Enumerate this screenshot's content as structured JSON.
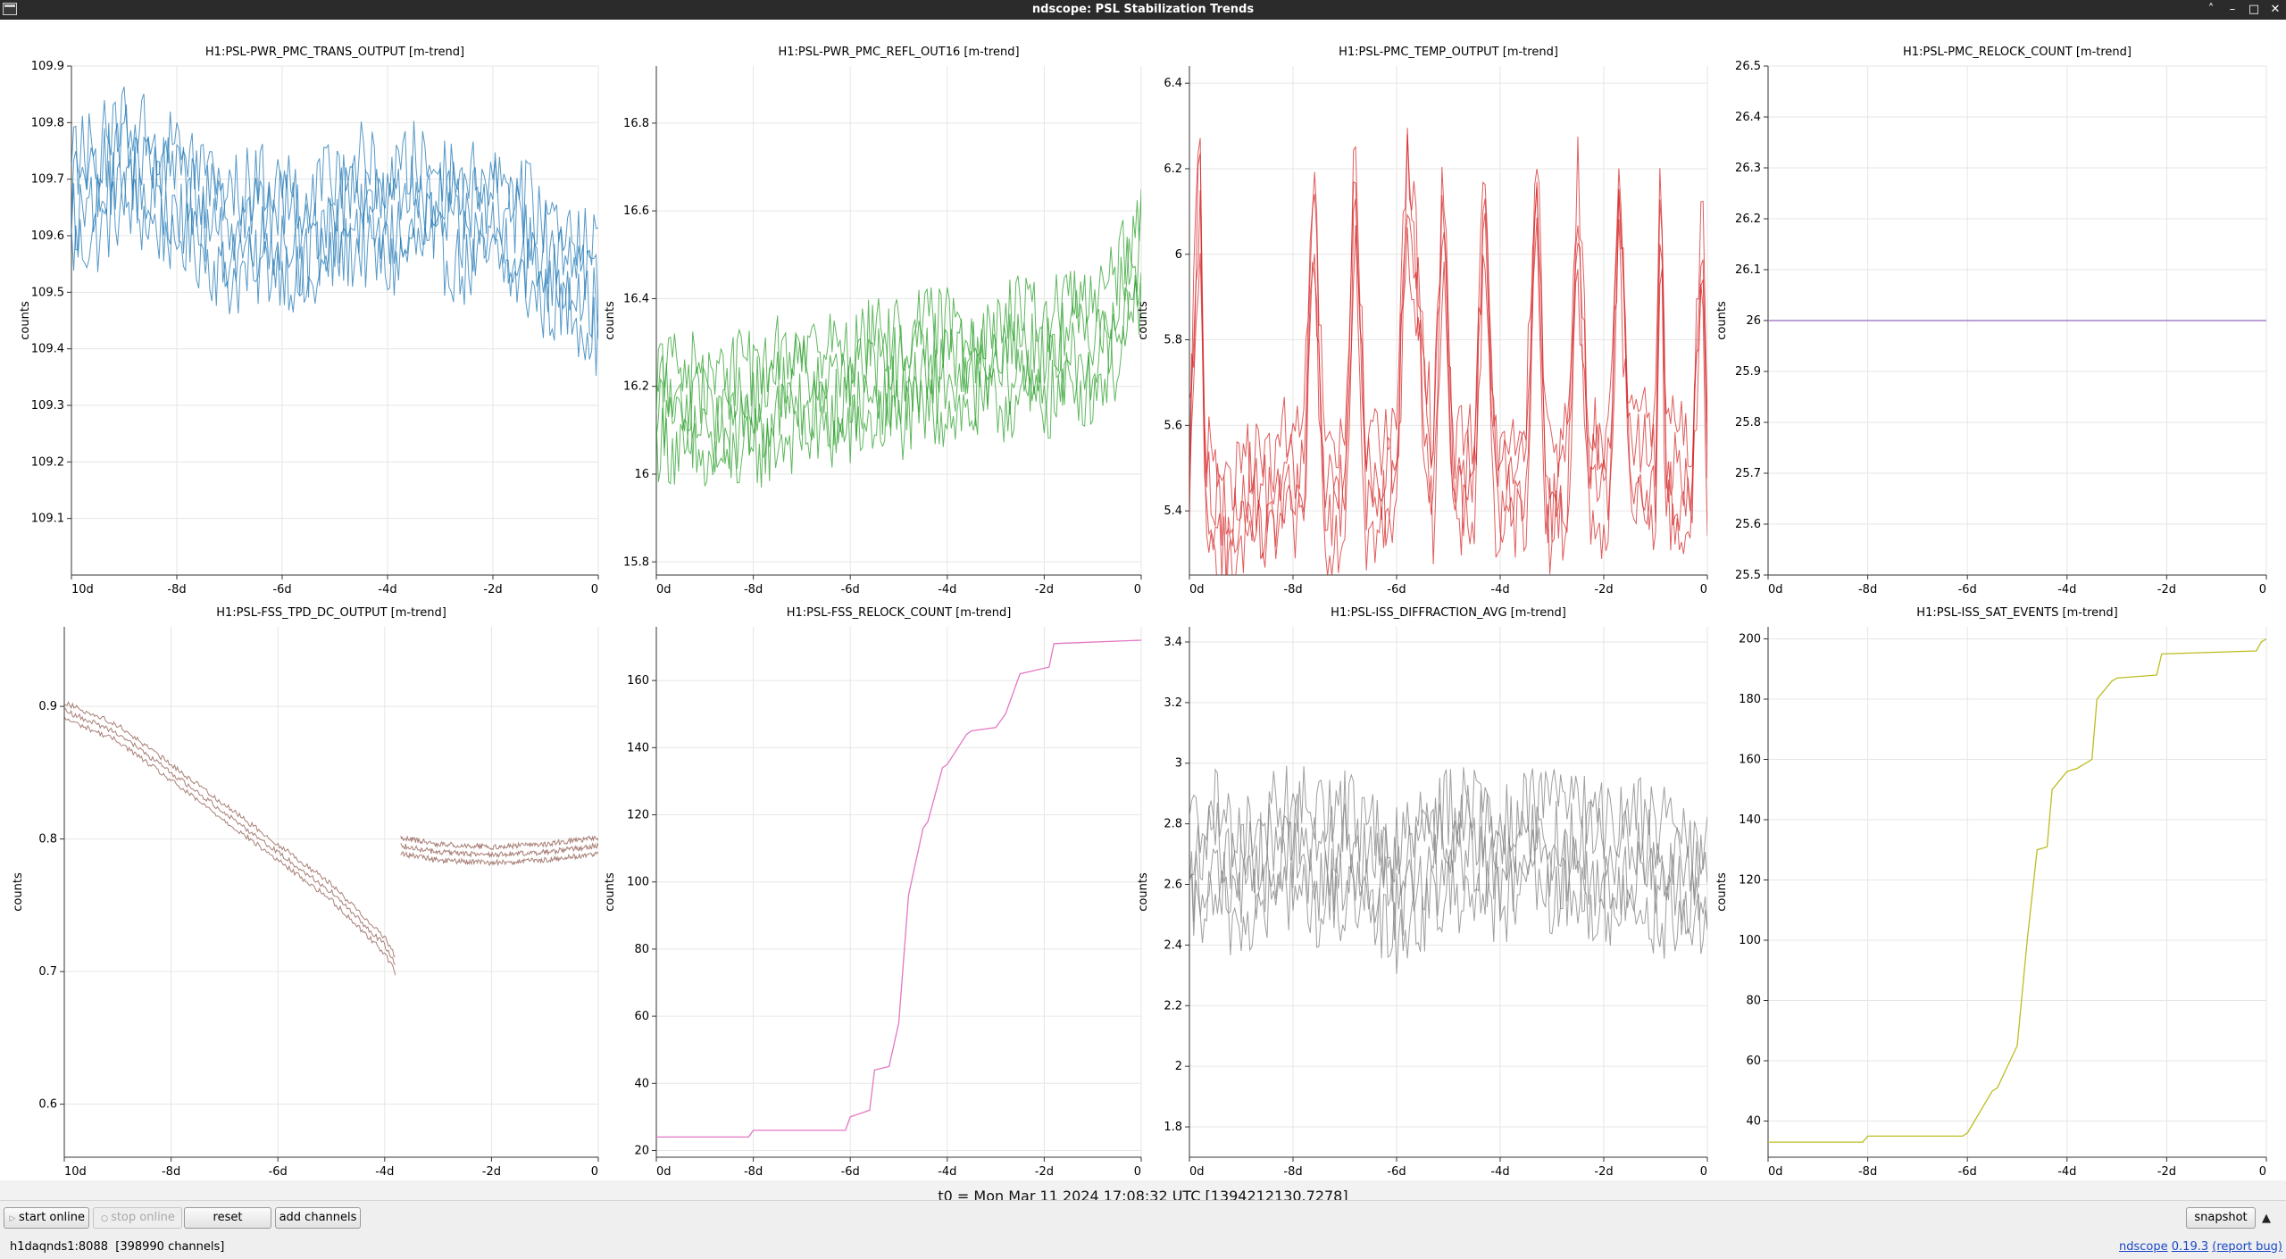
{
  "window": {
    "title": "ndscope: PSL Stabilization Trends",
    "controls": [
      "˄",
      "–",
      "□",
      "✕"
    ]
  },
  "t0_label": "t0 = Mon Mar 11 2024 17:08:32 UTC [1394212130.7278]",
  "toolbar": {
    "start_online": "start online",
    "stop_online": "stop online",
    "reset": "reset",
    "add_channels": "add channels",
    "snapshot": "snapshot"
  },
  "status": {
    "server": "h1daqnds1:8088  [398990 channels]",
    "app_name": "ndscope",
    "version": "0.19.3",
    "report_bug": "(report bug)"
  },
  "chart_data": [
    {
      "type": "line",
      "title": "H1:PSL-PWR_PMC_TRANS_OUTPUT [m-trend]",
      "ylabel": "counts",
      "color": "#1f77b4",
      "xlim": [
        -10,
        0
      ],
      "ylim": [
        109.0,
        109.9
      ],
      "yticks": [
        109.1,
        109.2,
        109.3,
        109.4,
        109.5,
        109.6,
        109.7,
        109.8,
        109.9
      ],
      "xticks": [
        "10d",
        "-8d",
        "-6d",
        "-4d",
        "-2d",
        "0"
      ],
      "grid": true,
      "series": [
        {
          "x": [
            -10,
            -9.5,
            -9,
            -8.5,
            -8,
            -7.5,
            -7,
            -6.5,
            -6,
            -5.5,
            -5,
            -4.5,
            -4,
            -3.5,
            -3,
            -2.5,
            -2,
            -1.5,
            -1,
            -0.5,
            0
          ],
          "values": [
            109.66,
            109.68,
            109.74,
            109.7,
            109.68,
            109.65,
            109.6,
            109.62,
            109.63,
            109.58,
            109.64,
            109.66,
            109.62,
            109.66,
            109.65,
            109.62,
            109.64,
            109.6,
            109.56,
            109.55,
            109.5
          ]
        }
      ]
    },
    {
      "type": "line",
      "title": "H1:PSL-PWR_PMC_REFL_OUT16 [m-trend]",
      "ylabel": "counts",
      "color": "#2ca02c",
      "xlim": [
        -10,
        0
      ],
      "ylim": [
        15.77,
        16.93
      ],
      "yticks": [
        15.8,
        16,
        16.2,
        16.4,
        16.6,
        16.8
      ],
      "xticks": [
        "0d",
        "-8d",
        "-6d",
        "-4d",
        "-2d",
        "0"
      ],
      "grid": true,
      "series": [
        {
          "x": [
            -10,
            -9.5,
            -9,
            -8.5,
            -8,
            -7.5,
            -7,
            -6.5,
            -6,
            -5.5,
            -5,
            -4.5,
            -4,
            -3.5,
            -3,
            -2.5,
            -2,
            -1.5,
            -1,
            -0.5,
            0
          ],
          "values": [
            16.18,
            16.16,
            16.12,
            16.14,
            16.15,
            16.18,
            16.2,
            16.19,
            16.2,
            16.22,
            16.22,
            16.24,
            16.25,
            16.24,
            16.26,
            16.27,
            16.26,
            16.3,
            16.3,
            16.36,
            16.5
          ]
        }
      ]
    },
    {
      "type": "line",
      "title": "H1:PSL-PMC_TEMP_OUTPUT [m-trend]",
      "ylabel": "counts",
      "color": "#d62728",
      "xlim": [
        -10,
        0
      ],
      "ylim": [
        5.25,
        6.44
      ],
      "yticks": [
        5.4,
        5.6,
        5.8,
        6,
        6.2,
        6.4
      ],
      "xticks": [
        "0d",
        "-8d",
        "-6d",
        "-4d",
        "-2d",
        "0"
      ],
      "grid": true,
      "series": [
        {
          "x": [
            -10,
            -9.8,
            -9.7,
            -9.5,
            -9.2,
            -9.0,
            -8.7,
            -8.5,
            -8.2,
            -7.8,
            -7.6,
            -7.4,
            -7.0,
            -6.8,
            -6.6,
            -6.2,
            -6.0,
            -5.8,
            -5.3,
            -5.1,
            -4.9,
            -4.5,
            -4.3,
            -4.1,
            -3.5,
            -3.3,
            -3.1,
            -2.7,
            -2.5,
            -2.3,
            -1.9,
            -1.7,
            -1.5,
            -1.0,
            -0.9,
            -0.8,
            -0.3,
            -0.1,
            0
          ],
          "values": [
            5.5,
            6.2,
            5.45,
            5.4,
            5.35,
            5.42,
            5.45,
            5.4,
            5.48,
            5.45,
            6.15,
            5.45,
            5.45,
            6.2,
            5.45,
            5.45,
            5.5,
            6.2,
            5.45,
            6.1,
            5.45,
            5.5,
            6.15,
            5.45,
            5.5,
            6.2,
            5.45,
            5.48,
            6.1,
            5.5,
            5.46,
            6.15,
            5.52,
            5.5,
            6.15,
            5.5,
            5.45,
            6.1,
            5.45
          ]
        }
      ]
    },
    {
      "type": "line",
      "title": "H1:PSL-PMC_RELOCK_COUNT [m-trend]",
      "ylabel": "counts",
      "color": "#9467bd",
      "xlim": [
        -10,
        0
      ],
      "ylim": [
        25.5,
        26.5
      ],
      "yticks": [
        25.5,
        25.6,
        25.7,
        25.8,
        25.9,
        26,
        26.1,
        26.2,
        26.3,
        26.4,
        26.5
      ],
      "xticks": [
        "0d",
        "-8d",
        "-6d",
        "-4d",
        "-2d",
        "0"
      ],
      "grid": true,
      "series": [
        {
          "x": [
            -10,
            0
          ],
          "values": [
            26,
            26
          ]
        }
      ]
    },
    {
      "type": "line",
      "title": "H1:PSL-FSS_TPD_DC_OUTPUT [m-trend]",
      "ylabel": "counts",
      "color": "#8c564b",
      "xlim": [
        -10,
        0
      ],
      "ylim": [
        0.56,
        0.96
      ],
      "yticks": [
        0.6,
        0.7,
        0.8,
        0.9
      ],
      "xticks": [
        "10d",
        "-8d",
        "-6d",
        "-4d",
        "-2d",
        "0"
      ],
      "grid": true,
      "series": [
        {
          "name": "",
          "x": [
            -10,
            -9,
            -8,
            -7,
            -6,
            -5,
            -4.5,
            -4,
            -3.8
          ],
          "values": [
            0.897,
            0.88,
            0.85,
            0.82,
            0.79,
            0.76,
            0.74,
            0.72,
            0.705
          ]
        },
        {
          "name": "",
          "x": [
            -3.7,
            -3,
            -2,
            -1,
            0
          ],
          "values": [
            0.795,
            0.79,
            0.788,
            0.79,
            0.795
          ]
        }
      ]
    },
    {
      "type": "line",
      "title": "H1:PSL-FSS_RELOCK_COUNT [m-trend]",
      "ylabel": "counts",
      "color": "#e377c2",
      "xlim": [
        -10,
        0
      ],
      "ylim": [
        18,
        176
      ],
      "yticks": [
        20,
        40,
        60,
        80,
        100,
        120,
        140,
        160
      ],
      "xticks": [
        "0d",
        "-8d",
        "-6d",
        "-4d",
        "-2d",
        "0"
      ],
      "grid": true,
      "series": [
        {
          "x": [
            -10,
            -8.1,
            -8.0,
            -6.1,
            -6.0,
            -5.6,
            -5.5,
            -5.2,
            -5.0,
            -4.8,
            -4.5,
            -4.4,
            -4.1,
            -4.0,
            -3.6,
            -3.5,
            -3.0,
            -2.8,
            -2.5,
            -2.2,
            -1.9,
            -1.8,
            0
          ],
          "values": [
            24,
            24,
            26,
            26,
            30,
            32,
            44,
            45,
            58,
            96,
            116,
            118,
            134,
            135,
            144,
            145,
            146,
            150,
            162,
            163,
            164,
            171,
            172
          ]
        }
      ]
    },
    {
      "type": "line",
      "title": "H1:PSL-ISS_DIFFRACTION_AVG [m-trend]",
      "ylabel": "counts",
      "color": "#7f7f7f",
      "xlim": [
        -10,
        0
      ],
      "ylim": [
        1.7,
        3.45
      ],
      "yticks": [
        1.8,
        2,
        2.2,
        2.4,
        2.6,
        2.8,
        3,
        3.2,
        3.4
      ],
      "xticks": [
        "0d",
        "-8d",
        "-6d",
        "-4d",
        "-2d",
        "0"
      ],
      "grid": true,
      "series": [
        {
          "x": [
            -10,
            -9.5,
            -9,
            -8.5,
            -8,
            -7.5,
            -7,
            -6.5,
            -6,
            -5.5,
            -5,
            -4.5,
            -4,
            -3.5,
            -3,
            -2.5,
            -2,
            -1.5,
            -1,
            -0.5,
            0
          ],
          "values": [
            2.65,
            2.7,
            2.62,
            2.68,
            2.75,
            2.66,
            2.7,
            2.64,
            2.6,
            2.66,
            2.72,
            2.75,
            2.68,
            2.74,
            2.7,
            2.72,
            2.66,
            2.7,
            2.66,
            2.62,
            2.58
          ]
        }
      ]
    },
    {
      "type": "line",
      "title": "H1:PSL-ISS_SAT_EVENTS [m-trend]",
      "ylabel": "counts",
      "color": "#bcbd22",
      "xlim": [
        -10,
        0
      ],
      "ylim": [
        28,
        204
      ],
      "yticks": [
        40,
        60,
        80,
        100,
        120,
        140,
        160,
        180,
        200
      ],
      "xticks": [
        "0d",
        "-8d",
        "-6d",
        "-4d",
        "-2d",
        "0"
      ],
      "grid": true,
      "series": [
        {
          "x": [
            -10,
            -8.1,
            -8.0,
            -6.1,
            -6.0,
            -5.5,
            -5.4,
            -5.0,
            -4.8,
            -4.6,
            -4.4,
            -4.3,
            -4.0,
            -3.8,
            -3.5,
            -3.4,
            -3.1,
            -3.0,
            -2.2,
            -2.1,
            -0.2,
            -0.1,
            0
          ],
          "values": [
            33,
            33,
            35,
            35,
            36,
            50,
            51,
            65,
            100,
            130,
            131,
            150,
            156,
            157,
            160,
            180,
            186,
            187,
            188,
            195,
            196,
            199,
            200
          ]
        }
      ]
    }
  ]
}
